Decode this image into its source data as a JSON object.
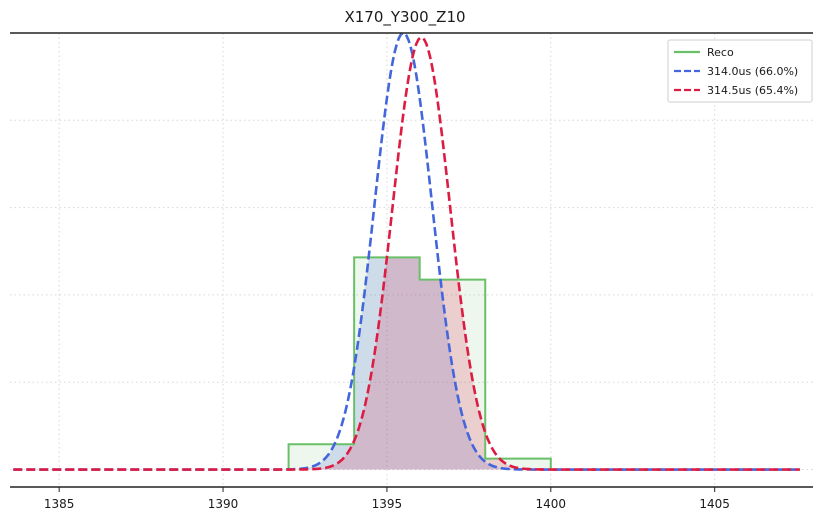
{
  "chart_data": {
    "type": "line",
    "title": "X170_Y300_Z10",
    "xlabel": "",
    "ylabel": "",
    "xlim": [
      1383.5,
      1408.0
    ],
    "ylim": [
      -0.04,
      1.0
    ],
    "xticks": [
      1385,
      1390,
      1395,
      1400,
      1405
    ],
    "grid": true,
    "legend_position": "top-right",
    "histogram": {
      "name": "Reco",
      "color": "#6abf69",
      "bins": [
        {
          "x0": 1392,
          "x1": 1394,
          "value": 0.058
        },
        {
          "x0": 1394,
          "x1": 1396,
          "value": 0.486
        },
        {
          "x0": 1396,
          "x1": 1398,
          "value": 0.435
        },
        {
          "x0": 1398,
          "x1": 1400,
          "value": 0.025
        }
      ]
    },
    "series": [
      {
        "name": "314.0us (66.0%)",
        "color": "#4466dd",
        "style": "dashed",
        "mean": 1395.5,
        "sigma": 0.88,
        "peak": 1.0
      },
      {
        "name": "314.5us (65.4%)",
        "color": "#dd1c44",
        "style": "dashed",
        "mean": 1396.05,
        "sigma": 0.88,
        "peak": 0.99
      }
    ],
    "curve_x_range": [
      1383.6,
      1407.6
    ]
  }
}
